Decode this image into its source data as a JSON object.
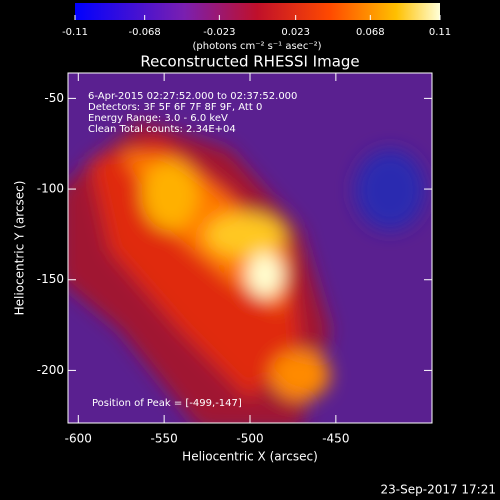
{
  "chart_data": {
    "type": "heatmap",
    "title": "Reconstructed RHESSI Image",
    "x_label": "Heliocentric X (arcsec)",
    "y_label": "Heliocentric Y (arcsec)",
    "xlim": [
      -606,
      -394
    ],
    "xticks": [
      -600,
      -550,
      -500,
      -450
    ],
    "ylim": [
      -229,
      -36
    ],
    "yticks": [
      -200,
      -150,
      -100,
      -50
    ],
    "colorbar": {
      "label": "(photons cm⁻² s⁻¹ asec⁻²)",
      "clim": [
        -0.11,
        0.11
      ],
      "ticks": [
        -0.11,
        -0.068,
        -0.023,
        0.023,
        0.068,
        0.11
      ]
    },
    "annotations": [
      "6-Apr-2015 02:27:52.000 to 02:37:52.000",
      "Detectors: 3F 5F 6F 7F 8F 9F, Att 0",
      "Energy Range: 3.0 - 6.0 keV",
      "Clean     Total counts: 2.34E+04"
    ],
    "peak_label": "Position of Peak = [-499,-147]",
    "timestamp": "23-Sep-2017 17:21"
  }
}
